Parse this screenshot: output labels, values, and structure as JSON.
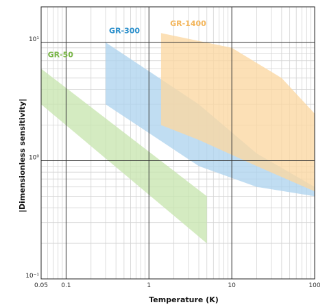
{
  "chart_data": {
    "type": "area",
    "title": "",
    "xlabel": "Temperature (K)",
    "ylabel": "|Dimensionless sensitivity|",
    "xscale": "log",
    "yscale": "log",
    "xlim": [
      0.05,
      100
    ],
    "ylim": [
      0.1,
      20
    ],
    "grid": true,
    "x_ticks": [
      {
        "value": 0.05,
        "label": "0.05"
      },
      {
        "value": 0.1,
        "label": "0.1"
      },
      {
        "value": 1,
        "label": "1"
      },
      {
        "value": 10,
        "label": "10"
      },
      {
        "value": 100,
        "label": "100"
      }
    ],
    "y_ticks": [
      {
        "value": 0.1,
        "label": "10⁻¹"
      },
      {
        "value": 1,
        "label": "10⁰"
      },
      {
        "value": 10,
        "label": "10¹"
      }
    ],
    "series": [
      {
        "name": "GR-50",
        "color": "#c8e6b0",
        "label_color": "#7ab648",
        "label_at": [
          0.06,
          7.5
        ],
        "polygon": [
          [
            0.05,
            6.0
          ],
          [
            5,
            0.5
          ],
          [
            5,
            0.2
          ],
          [
            0.05,
            3.0
          ]
        ]
      },
      {
        "name": "GR-300",
        "color": "#aed4ee",
        "label_color": "#2b8fcb",
        "label_at": [
          0.33,
          12.0
        ],
        "polygon": [
          [
            0.3,
            10.0
          ],
          [
            4,
            3.0
          ],
          [
            20,
            1.15
          ],
          [
            100,
            0.6
          ],
          [
            100,
            0.5
          ],
          [
            20,
            0.6
          ],
          [
            4,
            0.9
          ],
          [
            0.3,
            3.0
          ]
        ]
      },
      {
        "name": "GR-1400",
        "color": "#fbd7a2",
        "label_color": "#f3b55a",
        "label_at": [
          1.8,
          13.8
        ],
        "polygon": [
          [
            1.4,
            12.0
          ],
          [
            10,
            9.0
          ],
          [
            40,
            5.0
          ],
          [
            100,
            2.5
          ],
          [
            100,
            0.55
          ],
          [
            20,
            0.9
          ],
          [
            4,
            1.5
          ],
          [
            1.4,
            2.0
          ]
        ]
      }
    ]
  }
}
